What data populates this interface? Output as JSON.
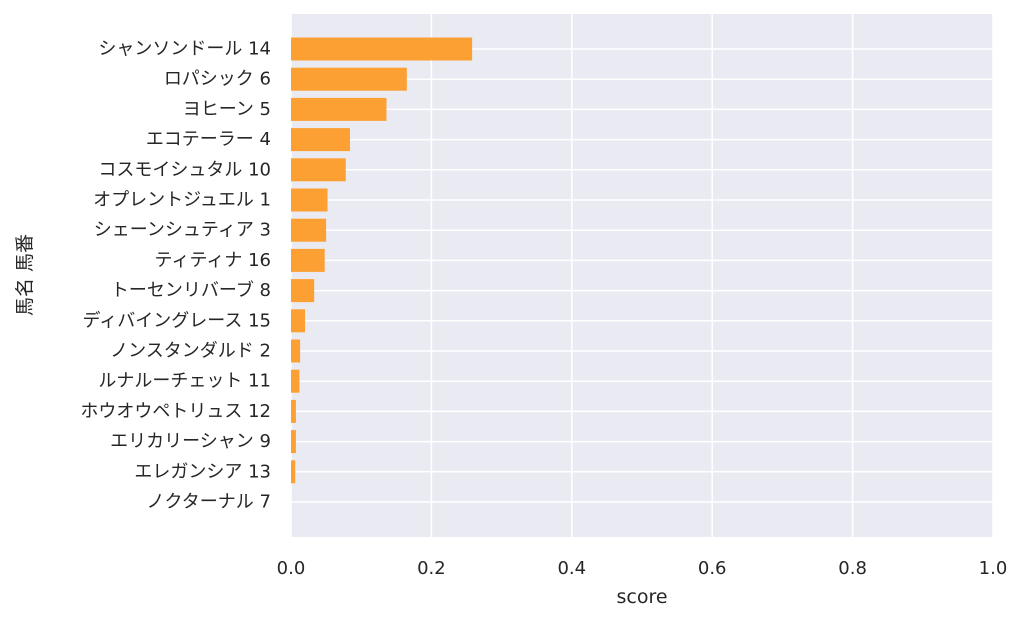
{
  "chart_data": {
    "type": "bar",
    "orientation": "horizontal",
    "xlabel": "score",
    "ylabel": "馬名 馬番",
    "xlim": [
      0.0,
      1.0
    ],
    "xticks": [
      "0.0",
      "0.2",
      "0.4",
      "0.6",
      "0.8",
      "1.0"
    ],
    "grid": true,
    "bar_color": "#fca033",
    "background_color": "#eaeaf2",
    "categories": [
      "シャンソンドール 14",
      "ロパシック 6",
      "ヨヒーン 5",
      "エコテーラー 4",
      "コスモイシュタル 10",
      "オプレントジュエル 1",
      "シェーンシュティア 3",
      "ティティナ 16",
      "トーセンリバーブ 8",
      "ディバイングレース 15",
      "ノンスタンダルド 2",
      "ルナルーチェット 11",
      "ホウオウペトリュス 12",
      "エリカリーシャン 9",
      "エレガンシア 13",
      "ノクターナル 7"
    ],
    "values": [
      0.258,
      0.165,
      0.136,
      0.084,
      0.078,
      0.052,
      0.05,
      0.048,
      0.033,
      0.02,
      0.013,
      0.012,
      0.007,
      0.007,
      0.006,
      0.0
    ]
  }
}
